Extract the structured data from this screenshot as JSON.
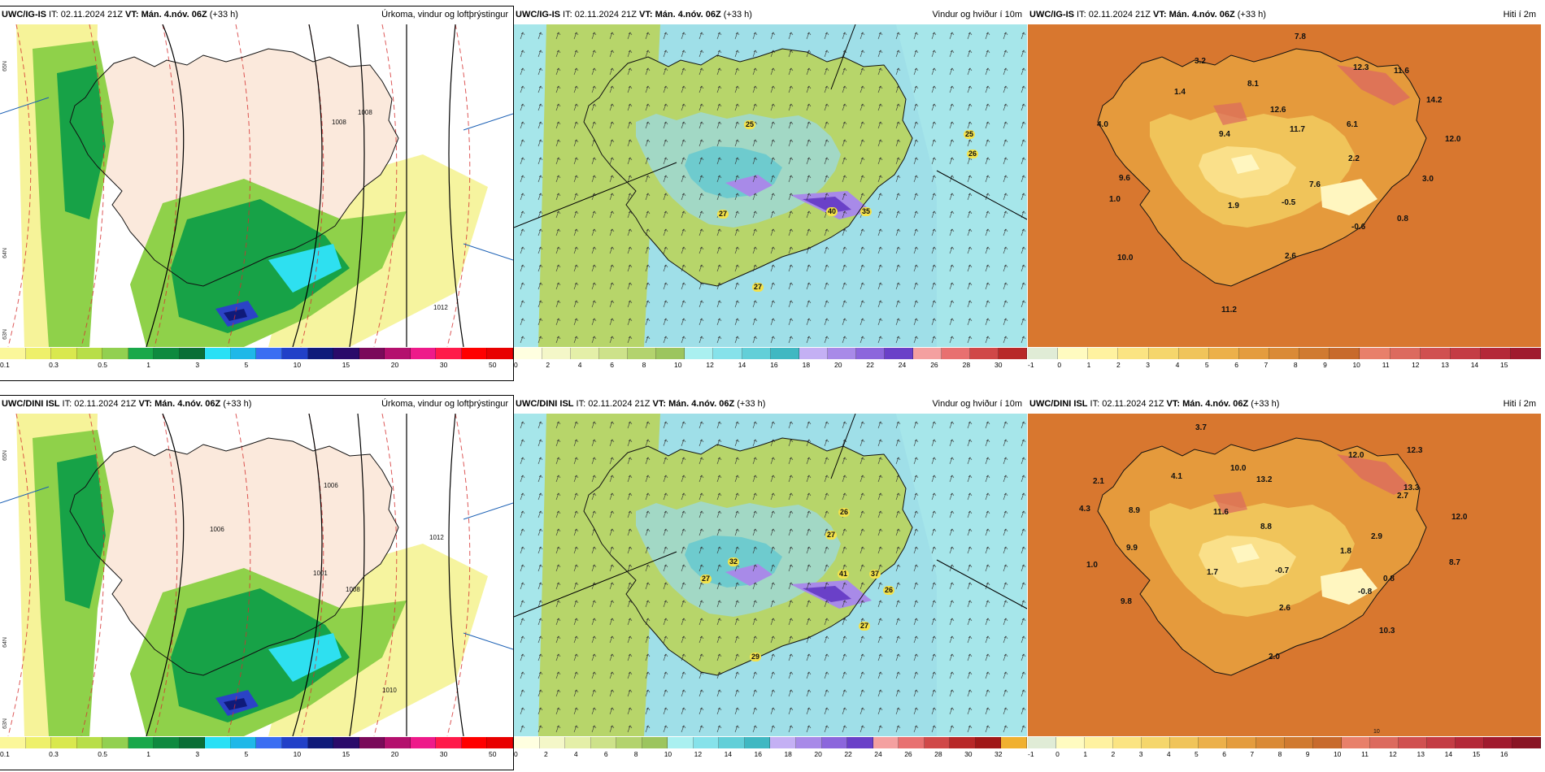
{
  "panels": [
    {
      "id": "p1",
      "model": "UWC/IG-IS",
      "it": "IT: 02.11.2024 21Z",
      "vt": "VT: Mán. 4.nóv. 06Z",
      "lead": "(+33 h)",
      "title": "Úrkoma, vindur og loftþrýstingur",
      "kind": "precip",
      "ticks": [
        "0.1",
        "0.3",
        "0.5",
        "1",
        "3",
        "5",
        "10",
        "15",
        "20",
        "30",
        "50"
      ],
      "colors": [
        "#fbf79a",
        "#eef06a",
        "#d9e84e",
        "#b8de48",
        "#92d050",
        "#19a84a",
        "#0e8a3f",
        "#0a6f36",
        "#29e0f5",
        "#1fb8e8",
        "#3a6ef2",
        "#2140c8",
        "#0f1a7a",
        "#2a0a6a",
        "#7a0a5a",
        "#b4106e",
        "#ee1a8a",
        "#ff1a4a",
        "#ff0000",
        "#e80000"
      ],
      "press": [
        "1008",
        "1008",
        "1012"
      ],
      "lat": [
        "65N",
        "64N",
        "63N"
      ]
    },
    {
      "id": "p2",
      "model": "UWC/IG-IS",
      "it": "IT: 02.11.2024 21Z",
      "vt": "VT: Mán. 4.nóv. 06Z",
      "lead": "(+33 h)",
      "title": "Vindur og hviður í 10m",
      "kind": "wind",
      "ticks": [
        "0",
        "2",
        "4",
        "6",
        "8",
        "10",
        "12",
        "14",
        "16",
        "18",
        "20",
        "22",
        "24",
        "26",
        "28",
        "30"
      ],
      "colors": [
        "#ffffe0",
        "#f4f7c8",
        "#e4efa8",
        "#cde28a",
        "#b3d36e",
        "#9cc55e",
        "#aaf0f0",
        "#86e2ea",
        "#62cfd8",
        "#40b8c2",
        "#c4b0f4",
        "#a88ae8",
        "#8c66dc",
        "#6a40c8",
        "#f4a0a0",
        "#e87070",
        "#d04848",
        "#b82828"
      ],
      "gusts": [
        "25",
        "25",
        "26",
        "27",
        "40",
        "35",
        "27"
      ]
    },
    {
      "id": "p3",
      "model": "UWC/IG-IS",
      "it": "IT: 02.11.2024 21Z",
      "vt": "VT: Mán. 4.nóv. 06Z",
      "lead": "(+33 h)",
      "title": "Hiti í 2m",
      "kind": "temp",
      "ticks": [
        "-1",
        "0",
        "1",
        "2",
        "3",
        "4",
        "5",
        "6",
        "7",
        "8",
        "9",
        "10",
        "11",
        "12",
        "13",
        "14",
        "15"
      ],
      "colors": [
        "#e0ecd6",
        "#fffbc0",
        "#fff2a0",
        "#fbe482",
        "#f5d66c",
        "#f0c45a",
        "#ecb04a",
        "#e49c3e",
        "#da8a36",
        "#d07a30",
        "#c86a2c",
        "#e8806a",
        "#dc6a5e",
        "#d05050",
        "#c43c44",
        "#b42838",
        "#a01a2e"
      ],
      "temps": [
        "7.8",
        "3.2",
        "1.4",
        "8.1",
        "12.3",
        "11.6",
        "14.2",
        "4.0",
        "9.4",
        "12.6",
        "11.7",
        "6.1",
        "12.0",
        "9.6",
        "2.2",
        "3.0",
        "1.0",
        "7.6",
        "1.9",
        "-0.5",
        "-0.6",
        "0.8",
        "10.0",
        "2.6",
        "11.2"
      ]
    },
    {
      "id": "p4",
      "model": "UWC/DINI ISL",
      "it": "IT: 02.11.2024 21Z",
      "vt": "VT: Mán. 4.nóv. 06Z",
      "lead": "(+33 h)",
      "title": "Úrkoma, vindur og loftþrýstingur",
      "kind": "precip",
      "ticks": [
        "0.1",
        "0.3",
        "0.5",
        "1",
        "3",
        "5",
        "10",
        "15",
        "20",
        "30",
        "50"
      ],
      "colors": [
        "#fbf79a",
        "#eef06a",
        "#d9e84e",
        "#b8de48",
        "#92d050",
        "#19a84a",
        "#0e8a3f",
        "#0a6f36",
        "#29e0f5",
        "#1fb8e8",
        "#3a6ef2",
        "#2140c8",
        "#0f1a7a",
        "#2a0a6a",
        "#7a0a5a",
        "#b4106e",
        "#ee1a8a",
        "#ff1a4a",
        "#ff0000",
        "#e80000"
      ],
      "press": [
        "1006",
        "1006",
        "1001",
        "1008",
        "1012",
        "1010"
      ],
      "lat": [
        "65N",
        "64N",
        "63N"
      ]
    },
    {
      "id": "p5",
      "model": "UWC/DINI ISL",
      "it": "IT: 02.11.2024 21Z",
      "vt": "VT: Mán. 4.nóv. 06Z",
      "lead": "(+33 h)",
      "title": "Vindur og hviður í 10m",
      "kind": "wind",
      "ticks": [
        "0",
        "2",
        "4",
        "6",
        "8",
        "10",
        "12",
        "14",
        "16",
        "18",
        "20",
        "22",
        "24",
        "26",
        "28",
        "30",
        "32"
      ],
      "colors": [
        "#ffffe0",
        "#f4f7c8",
        "#e4efa8",
        "#cde28a",
        "#b3d36e",
        "#9cc55e",
        "#aaf0f0",
        "#86e2ea",
        "#62cfd8",
        "#40b8c2",
        "#c4b0f4",
        "#a88ae8",
        "#8c66dc",
        "#6a40c8",
        "#f4a0a0",
        "#e87070",
        "#d04848",
        "#b82828",
        "#a01818",
        "#f0b030"
      ],
      "gusts": [
        "26",
        "27",
        "32",
        "27",
        "41",
        "37",
        "26",
        "27",
        "29"
      ]
    },
    {
      "id": "p6",
      "model": "UWC/DINI ISL",
      "it": "IT: 02.11.2024 21Z",
      "vt": "VT: Mán. 4.nóv. 06Z",
      "lead": "(+33 h)",
      "title": "Hiti í 2m",
      "kind": "temp",
      "ticks": [
        "-1",
        "0",
        "1",
        "2",
        "3",
        "4",
        "5",
        "6",
        "7",
        "8",
        "9",
        "10",
        "11",
        "12",
        "13",
        "14",
        "15",
        "16"
      ],
      "colors": [
        "#e0ecd6",
        "#fffbc0",
        "#fff2a0",
        "#fbe482",
        "#f5d66c",
        "#f0c45a",
        "#ecb04a",
        "#e49c3e",
        "#da8a36",
        "#d07a30",
        "#c86a2c",
        "#e8806a",
        "#dc6a5e",
        "#d05050",
        "#c43c44",
        "#b42838",
        "#a01a2e",
        "#8a1424"
      ],
      "temps": [
        "3.7",
        "12.0",
        "12.3",
        "2.1",
        "4.1",
        "10.0",
        "13.2",
        "13.3",
        "4.3",
        "8.9",
        "11.6",
        "2.7",
        "12.0",
        "9.9",
        "8.8",
        "2.9",
        "8.7",
        "1.0",
        "1.8",
        "1.7",
        "-0.7",
        "0.8",
        "9.8",
        "-0.8",
        "2.6",
        "10.3",
        "2.0"
      ],
      "contour": "10"
    }
  ]
}
